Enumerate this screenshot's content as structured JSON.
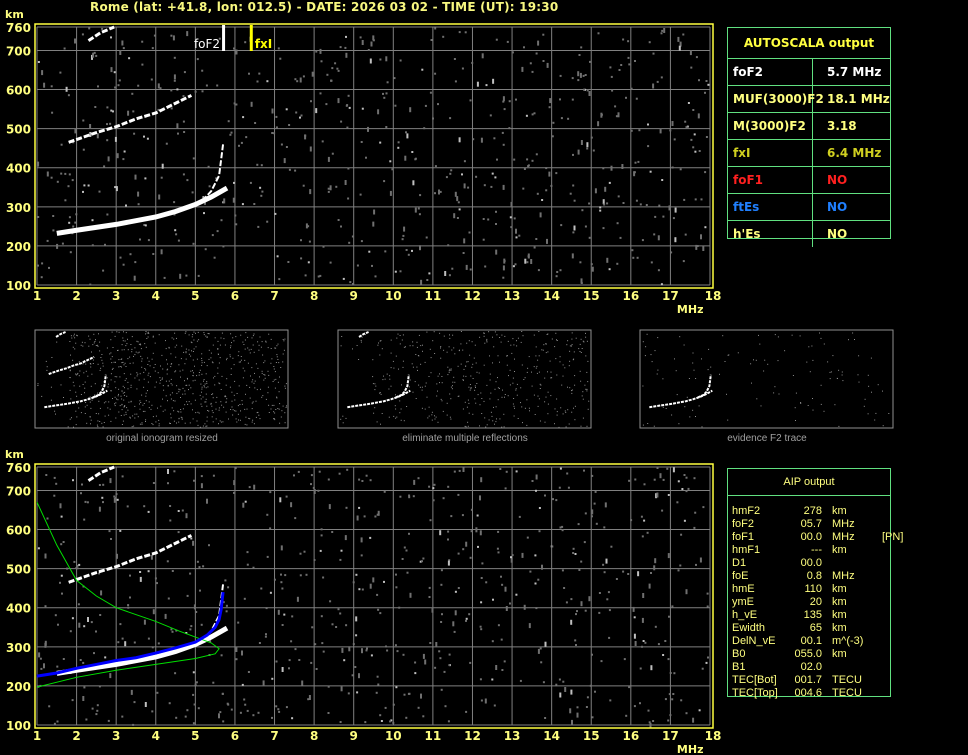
{
  "header": {
    "title": "Rome (lat: +41.8, lon: 012.5) - DATE: 2026 03 02 - TIME (UT): 19:30"
  },
  "ionogram": {
    "y_unit": "km",
    "x_unit": "MHz",
    "y_ticks": [
      "760",
      "700",
      "600",
      "500",
      "400",
      "300",
      "200",
      "100"
    ],
    "x_ticks": [
      "1",
      "2",
      "3",
      "4",
      "5",
      "6",
      "7",
      "8",
      "9",
      "10",
      "11",
      "12",
      "13",
      "14",
      "15",
      "16",
      "17",
      "18"
    ],
    "markers": {
      "foF2_label": "foF2",
      "fxI_label": "fxI"
    },
    "colors": {
      "axis": "#ffff40",
      "grid": "#808080",
      "foF2_marker": "#ffffff",
      "fxI_marker": "#ffff00",
      "profile": "#00e000",
      "fit": "#0000ff"
    }
  },
  "chart_data": {
    "type": "scatter",
    "xlim": [
      1,
      18
    ],
    "ylim": [
      100,
      760
    ],
    "traces": {
      "f2_first_hop": [
        [
          1.5,
          232
        ],
        [
          2,
          240
        ],
        [
          3,
          255
        ],
        [
          4,
          274
        ],
        [
          4.5,
          288
        ],
        [
          5,
          306
        ],
        [
          5.4,
          325
        ],
        [
          5.8,
          348
        ]
      ],
      "f2_inner": [
        [
          4.8,
          300
        ],
        [
          5.2,
          318
        ],
        [
          5.4,
          340
        ],
        [
          5.6,
          380
        ],
        [
          5.7,
          460
        ]
      ],
      "f2_second_hop": [
        [
          1.8,
          465
        ],
        [
          2.5,
          490
        ],
        [
          3,
          505
        ],
        [
          3.5,
          525
        ],
        [
          4,
          540
        ],
        [
          4.5,
          565
        ],
        [
          4.9,
          585
        ]
      ],
      "f2_third_hop": [
        [
          2.3,
          725
        ],
        [
          2.6,
          745
        ],
        [
          2.95,
          760
        ]
      ]
    },
    "aip_profile": [
      [
        1,
        670
      ],
      [
        1.5,
        560
      ],
      [
        2,
        470
      ],
      [
        2.5,
        430
      ],
      [
        3,
        400
      ],
      [
        4,
        365
      ],
      [
        4.6,
        340
      ],
      [
        5,
        325
      ],
      [
        5.4,
        310
      ],
      [
        5.6,
        295
      ],
      [
        5.5,
        282
      ],
      [
        5,
        270
      ],
      [
        4,
        255
      ],
      [
        3,
        240
      ],
      [
        2,
        222
      ],
      [
        1,
        197
      ]
    ],
    "aip_fit": [
      [
        1,
        225
      ],
      [
        1.5,
        233
      ],
      [
        2,
        245
      ],
      [
        2.5,
        255
      ],
      [
        3,
        265
      ],
      [
        3.5,
        272
      ],
      [
        4,
        284
      ],
      [
        4.5,
        297
      ],
      [
        5,
        312
      ],
      [
        5.3,
        330
      ],
      [
        5.5,
        350
      ],
      [
        5.6,
        370
      ],
      [
        5.65,
        395
      ],
      [
        5.7,
        440
      ]
    ]
  },
  "thumbnails": [
    {
      "caption": "original ionogram resized"
    },
    {
      "caption": "eliminate multiple reflections"
    },
    {
      "caption": "evidence F2 trace"
    }
  ],
  "autoscala": {
    "title": "AUTOSCALA output",
    "rows": [
      {
        "key": "foF2",
        "value": "5.7 MHz",
        "color": "#ffffff"
      },
      {
        "key": "MUF(3000)F2",
        "value": "18.1 MHz",
        "color": "#ffff80"
      },
      {
        "key": "M(3000)F2",
        "value": "3.18",
        "color": "#ffff80"
      },
      {
        "key": "fxI",
        "value": "6.4 MHz",
        "color": "#d0d020"
      },
      {
        "key": "foF1",
        "value": "NO",
        "color": "#ff2020"
      },
      {
        "key": "ftEs",
        "value": "NO",
        "color": "#2080ff"
      },
      {
        "key": "h'Es",
        "value": "NO",
        "color": "#ffff80"
      }
    ]
  },
  "aip": {
    "title": "AIP output",
    "rows": [
      [
        "hmF2",
        "278",
        "km",
        ""
      ],
      [
        "foF2",
        "05.7",
        "MHz",
        ""
      ],
      [
        "foF1",
        "00.0",
        "MHz",
        "[PN]"
      ],
      [
        "hmF1",
        "---",
        "km",
        ""
      ],
      [
        "D1",
        "00.0",
        "",
        ""
      ],
      [
        "foE",
        "0.8",
        "MHz",
        ""
      ],
      [
        "hmE",
        "110",
        "km",
        ""
      ],
      [
        "ymE",
        "20",
        "km",
        ""
      ],
      [
        "h_vE",
        "135",
        "km",
        ""
      ],
      [
        "Ewidth",
        "65",
        "km",
        ""
      ],
      [
        "DelN_vE",
        "00.1",
        "m^(-3)",
        ""
      ],
      [
        "B0",
        "055.0",
        "km",
        ""
      ],
      [
        "B1",
        "02.0",
        "",
        ""
      ],
      [
        "TEC[Bot]",
        "001.7",
        "TECU",
        ""
      ],
      [
        "TEC[Top]",
        "004.6",
        "TECU",
        ""
      ]
    ]
  }
}
